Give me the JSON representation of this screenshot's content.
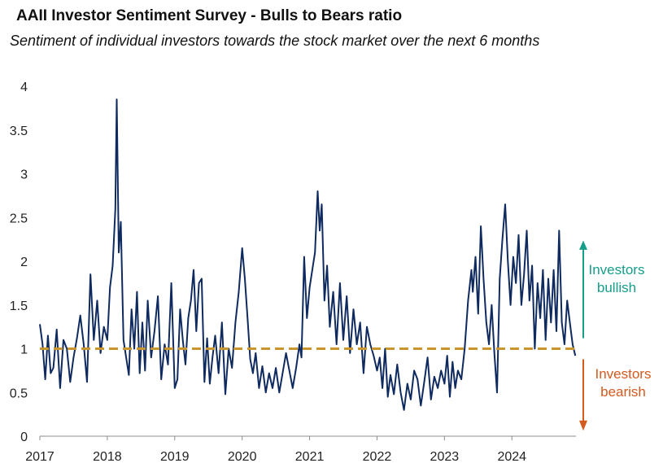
{
  "chart_data": {
    "type": "line",
    "title": "AAII Investor Sentiment Survey - Bulls to Bears ratio",
    "subtitle": "Sentiment of individual investors towards the stock market over the next 6 months",
    "xlabel": "",
    "ylabel": "",
    "xlim": [
      2017,
      2024.95
    ],
    "ylim": [
      0,
      4
    ],
    "y_ticks": [
      "0",
      "0.5",
      "1",
      "1.5",
      "2",
      "2.5",
      "3",
      "3.5",
      "4"
    ],
    "x_ticks": [
      "2017",
      "2018",
      "2019",
      "2020",
      "2021",
      "2022",
      "2023",
      "2024"
    ],
    "reference_line": {
      "y": 1,
      "style": "dashed",
      "color": "#C9962E"
    },
    "series": [
      {
        "name": "Bulls to Bears ratio",
        "color": "#0F2A5F",
        "points": [
          [
            2017.0,
            1.28
          ],
          [
            2017.04,
            1.05
          ],
          [
            2017.08,
            0.65
          ],
          [
            2017.12,
            1.15
          ],
          [
            2017.16,
            0.72
          ],
          [
            2017.2,
            0.78
          ],
          [
            2017.25,
            1.22
          ],
          [
            2017.3,
            0.55
          ],
          [
            2017.35,
            1.1
          ],
          [
            2017.4,
            1.0
          ],
          [
            2017.45,
            0.62
          ],
          [
            2017.5,
            0.9
          ],
          [
            2017.55,
            1.12
          ],
          [
            2017.6,
            1.38
          ],
          [
            2017.65,
            1.05
          ],
          [
            2017.7,
            0.62
          ],
          [
            2017.75,
            1.85
          ],
          [
            2017.8,
            1.1
          ],
          [
            2017.85,
            1.55
          ],
          [
            2017.9,
            0.95
          ],
          [
            2017.95,
            1.25
          ],
          [
            2018.0,
            1.1
          ],
          [
            2018.04,
            1.7
          ],
          [
            2018.08,
            1.95
          ],
          [
            2018.12,
            2.6
          ],
          [
            2018.14,
            3.85
          ],
          [
            2018.17,
            2.1
          ],
          [
            2018.2,
            2.45
          ],
          [
            2018.24,
            1.1
          ],
          [
            2018.28,
            0.9
          ],
          [
            2018.32,
            0.7
          ],
          [
            2018.36,
            1.45
          ],
          [
            2018.4,
            1.0
          ],
          [
            2018.44,
            1.65
          ],
          [
            2018.48,
            0.72
          ],
          [
            2018.52,
            1.3
          ],
          [
            2018.56,
            0.75
          ],
          [
            2018.6,
            1.55
          ],
          [
            2018.65,
            0.9
          ],
          [
            2018.7,
            1.2
          ],
          [
            2018.75,
            1.6
          ],
          [
            2018.8,
            0.65
          ],
          [
            2018.85,
            1.05
          ],
          [
            2018.9,
            0.82
          ],
          [
            2018.95,
            1.75
          ],
          [
            2019.0,
            0.55
          ],
          [
            2019.04,
            0.65
          ],
          [
            2019.08,
            1.45
          ],
          [
            2019.12,
            1.1
          ],
          [
            2019.16,
            0.82
          ],
          [
            2019.2,
            1.35
          ],
          [
            2019.24,
            1.55
          ],
          [
            2019.28,
            1.9
          ],
          [
            2019.32,
            1.2
          ],
          [
            2019.36,
            1.75
          ],
          [
            2019.4,
            1.8
          ],
          [
            2019.44,
            0.62
          ],
          [
            2019.48,
            1.12
          ],
          [
            2019.52,
            0.6
          ],
          [
            2019.56,
            0.9
          ],
          [
            2019.6,
            1.15
          ],
          [
            2019.65,
            0.72
          ],
          [
            2019.7,
            1.3
          ],
          [
            2019.75,
            0.48
          ],
          [
            2019.8,
            1.0
          ],
          [
            2019.85,
            0.78
          ],
          [
            2019.9,
            1.3
          ],
          [
            2019.95,
            1.65
          ],
          [
            2020.0,
            2.15
          ],
          [
            2020.04,
            1.8
          ],
          [
            2020.08,
            1.35
          ],
          [
            2020.12,
            0.88
          ],
          [
            2020.16,
            0.72
          ],
          [
            2020.2,
            0.95
          ],
          [
            2020.25,
            0.55
          ],
          [
            2020.3,
            0.8
          ],
          [
            2020.35,
            0.5
          ],
          [
            2020.4,
            0.72
          ],
          [
            2020.45,
            0.55
          ],
          [
            2020.5,
            0.78
          ],
          [
            2020.55,
            0.5
          ],
          [
            2020.6,
            0.72
          ],
          [
            2020.65,
            0.95
          ],
          [
            2020.7,
            0.75
          ],
          [
            2020.75,
            0.55
          ],
          [
            2020.8,
            0.78
          ],
          [
            2020.85,
            1.05
          ],
          [
            2020.88,
            0.9
          ],
          [
            2020.92,
            2.05
          ],
          [
            2020.96,
            1.35
          ],
          [
            2021.0,
            1.7
          ],
          [
            2021.05,
            1.95
          ],
          [
            2021.08,
            2.1
          ],
          [
            2021.12,
            2.8
          ],
          [
            2021.15,
            2.35
          ],
          [
            2021.18,
            2.65
          ],
          [
            2021.22,
            1.55
          ],
          [
            2021.26,
            1.95
          ],
          [
            2021.3,
            1.25
          ],
          [
            2021.35,
            1.65
          ],
          [
            2021.4,
            1.05
          ],
          [
            2021.45,
            1.75
          ],
          [
            2021.5,
            1.1
          ],
          [
            2021.55,
            1.6
          ],
          [
            2021.6,
            0.95
          ],
          [
            2021.65,
            1.45
          ],
          [
            2021.7,
            1.05
          ],
          [
            2021.75,
            1.3
          ],
          [
            2021.8,
            0.72
          ],
          [
            2021.85,
            1.25
          ],
          [
            2021.9,
            1.05
          ],
          [
            2021.95,
            0.92
          ],
          [
            2022.0,
            0.75
          ],
          [
            2022.04,
            0.9
          ],
          [
            2022.08,
            0.55
          ],
          [
            2022.12,
            1.0
          ],
          [
            2022.16,
            0.45
          ],
          [
            2022.2,
            0.7
          ],
          [
            2022.25,
            0.48
          ],
          [
            2022.3,
            0.82
          ],
          [
            2022.35,
            0.5
          ],
          [
            2022.4,
            0.3
          ],
          [
            2022.45,
            0.6
          ],
          [
            2022.5,
            0.42
          ],
          [
            2022.55,
            0.75
          ],
          [
            2022.6,
            0.65
          ],
          [
            2022.65,
            0.35
          ],
          [
            2022.7,
            0.62
          ],
          [
            2022.75,
            0.9
          ],
          [
            2022.8,
            0.42
          ],
          [
            2022.85,
            0.68
          ],
          [
            2022.9,
            0.55
          ],
          [
            2022.95,
            0.75
          ],
          [
            2023.0,
            0.6
          ],
          [
            2023.04,
            0.92
          ],
          [
            2023.08,
            0.45
          ],
          [
            2023.12,
            0.85
          ],
          [
            2023.16,
            0.55
          ],
          [
            2023.2,
            0.75
          ],
          [
            2023.25,
            0.65
          ],
          [
            2023.3,
            1.0
          ],
          [
            2023.35,
            1.55
          ],
          [
            2023.4,
            1.9
          ],
          [
            2023.42,
            1.65
          ],
          [
            2023.46,
            2.05
          ],
          [
            2023.5,
            1.4
          ],
          [
            2023.54,
            2.4
          ],
          [
            2023.58,
            1.8
          ],
          [
            2023.62,
            1.3
          ],
          [
            2023.66,
            1.05
          ],
          [
            2023.7,
            1.5
          ],
          [
            2023.74,
            0.95
          ],
          [
            2023.78,
            0.5
          ],
          [
            2023.82,
            1.8
          ],
          [
            2023.86,
            2.25
          ],
          [
            2023.9,
            2.65
          ],
          [
            2023.94,
            2.0
          ],
          [
            2023.98,
            1.5
          ],
          [
            2024.02,
            2.05
          ],
          [
            2024.06,
            1.75
          ],
          [
            2024.1,
            2.3
          ],
          [
            2024.14,
            1.5
          ],
          [
            2024.18,
            1.85
          ],
          [
            2024.22,
            2.35
          ],
          [
            2024.26,
            1.55
          ],
          [
            2024.3,
            1.95
          ],
          [
            2024.34,
            1.0
          ],
          [
            2024.38,
            1.75
          ],
          [
            2024.42,
            1.35
          ],
          [
            2024.46,
            1.9
          ],
          [
            2024.5,
            1.1
          ],
          [
            2024.54,
            1.8
          ],
          [
            2024.58,
            1.3
          ],
          [
            2024.62,
            1.9
          ],
          [
            2024.66,
            1.2
          ],
          [
            2024.7,
            2.35
          ],
          [
            2024.74,
            1.3
          ],
          [
            2024.78,
            1.05
          ],
          [
            2024.82,
            1.55
          ],
          [
            2024.86,
            1.3
          ],
          [
            2024.9,
            1.05
          ],
          [
            2024.94,
            0.92
          ]
        ]
      }
    ],
    "annotations": [
      {
        "label_line1": "Investors",
        "label_line2": "bullish",
        "direction": "up",
        "color": "#169E8A"
      },
      {
        "label_line1": "Investors",
        "label_line2": "bearish",
        "direction": "down",
        "color": "#D45A1E"
      }
    ]
  }
}
